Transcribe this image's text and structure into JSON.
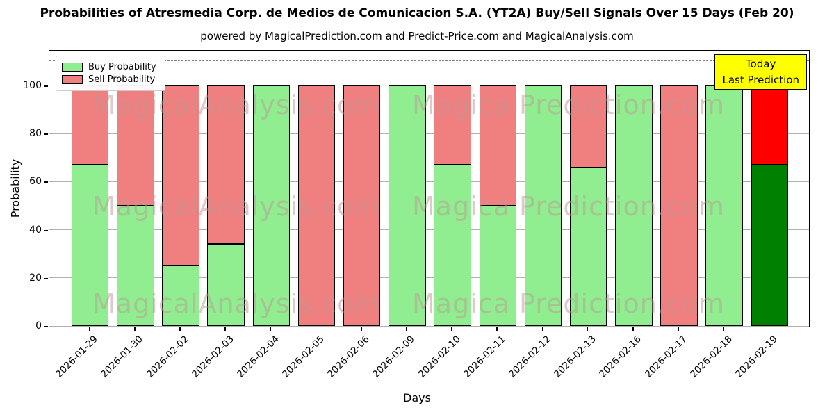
{
  "title": "Probabilities of Atresmedia Corp. de Medios de Comunicacion S.A. (YT2A) Buy/Sell Signals Over 15 Days (Feb 20)",
  "subtitle": "powered by MagicalPrediction.com and Predict-Price.com and MagicalAnalysis.com",
  "chart_data": {
    "type": "bar",
    "stacked": true,
    "title": "Probabilities of Atresmedia Corp. de Medios de Comunicacion S.A. (YT2A) Buy/Sell Signals Over 15 Days (Feb 20)",
    "xlabel": "Days",
    "ylabel": "Probability",
    "ylim": [
      0,
      115
    ],
    "yticks": [
      0,
      20,
      40,
      60,
      80,
      100
    ],
    "grid": true,
    "dashed_line_y": 110,
    "legend_position": "upper left",
    "categories": [
      "2026-01-29",
      "2026-01-30",
      "2026-02-02",
      "2026-02-03",
      "2026-02-04",
      "2026-02-05",
      "2026-02-06",
      "2026-02-09",
      "2026-02-10",
      "2026-02-11",
      "2026-02-12",
      "2026-02-13",
      "2026-02-16",
      "2026-02-17",
      "2026-02-18",
      "2026-02-19"
    ],
    "series": [
      {
        "name": "Buy Probability",
        "color": "#90EE90",
        "values": [
          67,
          50,
          25,
          34,
          100,
          0,
          0,
          100,
          67,
          50,
          100,
          66,
          100,
          0,
          100,
          67
        ]
      },
      {
        "name": "Sell Probability",
        "color": "#F08080",
        "values": [
          33,
          50,
          75,
          66,
          0,
          100,
          100,
          0,
          33,
          50,
          0,
          34,
          0,
          100,
          0,
          33
        ]
      }
    ],
    "last_bar_colors": {
      "buy": "#008000",
      "sell": "#FF0000"
    },
    "annotation": {
      "lines": [
        "Today",
        "Last Prediction"
      ],
      "bg": "#ffff00"
    },
    "watermarks": [
      "MagicalAnalysis.com",
      "Magica Prediction.com"
    ]
  }
}
